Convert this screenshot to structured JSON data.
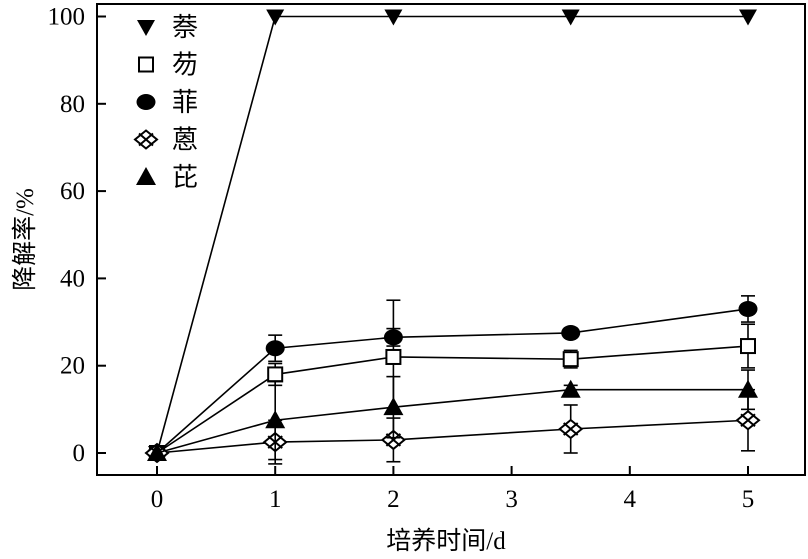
{
  "chart_data": {
    "type": "scatter",
    "title": "",
    "xlabel": "培养时间/d",
    "ylabel": "降解率/%",
    "xlim": [
      -0.5,
      5.55
    ],
    "ylim": [
      -5,
      101.5
    ],
    "xticks": [
      0,
      1,
      2,
      3,
      4,
      5
    ],
    "yticks": [
      0,
      20,
      40,
      60,
      80,
      100
    ],
    "grid": false,
    "legend_position": "top-left",
    "series": [
      {
        "name": "萘",
        "marker": "triangle-down",
        "x": [
          0,
          1,
          2,
          3.5,
          5
        ],
        "y": [
          0,
          100,
          100,
          100,
          100
        ],
        "err": [
          0,
          0,
          0,
          0,
          0
        ]
      },
      {
        "name": "芴",
        "marker": "open-square",
        "x": [
          0,
          1,
          2,
          3.5,
          5
        ],
        "y": [
          0,
          18,
          22,
          21.5,
          24.5
        ],
        "err": [
          0,
          2.5,
          13,
          2,
          5
        ]
      },
      {
        "name": "菲",
        "marker": "filled-circle",
        "x": [
          0,
          1,
          2,
          3.5,
          5
        ],
        "y": [
          0,
          24,
          26.5,
          27.5,
          33
        ],
        "err": [
          0,
          3,
          2,
          1,
          3
        ]
      },
      {
        "name": "蒽",
        "marker": "crossed-diamond",
        "x": [
          0,
          1,
          2,
          3.5,
          5
        ],
        "y": [
          0,
          2.5,
          3,
          5.5,
          7.5
        ],
        "err": [
          0,
          5,
          5,
          5.5,
          7
        ]
      },
      {
        "name": "芘",
        "marker": "filled-triangle-up",
        "x": [
          0,
          1,
          2,
          3.5,
          5
        ],
        "y": [
          0,
          7.5,
          10.5,
          14.5,
          14.5
        ],
        "err": [
          0,
          9,
          7,
          1,
          4.5
        ]
      }
    ]
  }
}
